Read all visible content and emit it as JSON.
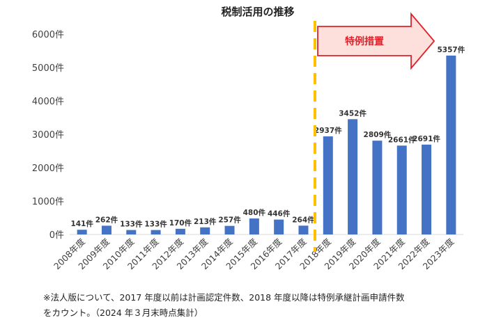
{
  "chart_data": {
    "type": "bar",
    "title": "税制活用の推移",
    "categories": [
      "2008年度",
      "2009年度",
      "2010年度",
      "2011年度",
      "2012年度",
      "2013年度",
      "2014年度",
      "2015年度",
      "2016年度",
      "2017年度",
      "2018年度",
      "2019年度",
      "2020年度",
      "2021年度",
      "2022年度",
      "2023年度"
    ],
    "values": [
      141,
      262,
      133,
      133,
      170,
      213,
      257,
      480,
      446,
      264,
      2937,
      3452,
      2809,
      2661,
      2691,
      5357
    ],
    "data_labels": [
      "141件",
      "262件",
      "133件",
      "133件",
      "170件",
      "213件",
      "257件",
      "480件",
      "446件",
      "264件",
      "2937件",
      "3452件",
      "2809件",
      "2661件",
      "2691件",
      "5357件"
    ],
    "y_ticks": [
      "0件",
      "1000件",
      "2000件",
      "3000件",
      "4000件",
      "5000件",
      "6000件"
    ],
    "ylim": [
      0,
      6000
    ],
    "grid": false,
    "bar_color": "#4472c4",
    "divider_color": "#ffc000",
    "annotation": "特例措置",
    "annotation_color": "#e0202a"
  },
  "footnote": {
    "line1": "※法人版について、2017 年度以前は計画認定件数、2018 年度以降は特例承継計画申請件数",
    "line2": "をカウント。（2024 年３月末時点集計）"
  }
}
